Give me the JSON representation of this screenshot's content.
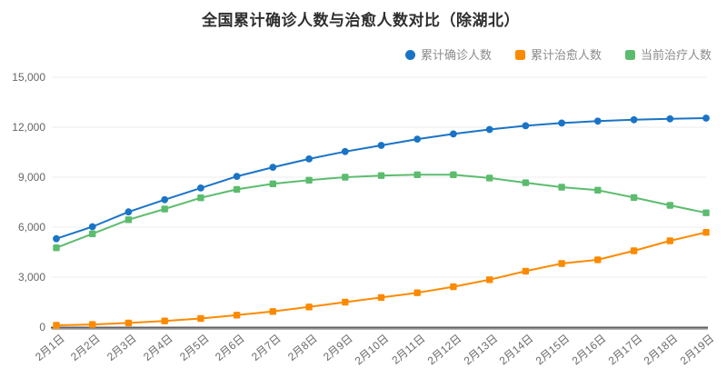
{
  "chart_data": {
    "type": "line",
    "title": "全国累计确诊人数与治愈人数对比（除湖北）",
    "x": [
      "2月1日",
      "2月2日",
      "2月3日",
      "2月4日",
      "2月5日",
      "2月6日",
      "2月7日",
      "2月8日",
      "2月9日",
      "2月10日",
      "2月11日",
      "2月12日",
      "2月13日",
      "2月14日",
      "2月15日",
      "2月16日",
      "2月17日",
      "2月18日",
      "2月19日"
    ],
    "series": [
      {
        "key": "confirmed",
        "name": "累计确诊人数",
        "color": "#1a74c6",
        "marker": "circle",
        "values": [
          5306,
          6028,
          6916,
          7646,
          8353,
          9049,
          9593,
          10098,
          10540,
          10910,
          11287,
          11598,
          11865,
          12086,
          12251,
          12366,
          12447,
          12503,
          12545
        ]
      },
      {
        "key": "cured",
        "name": "累计治愈人数",
        "color": "#fc8a00",
        "marker": "square",
        "values": [
          110,
          160,
          250,
          370,
          520,
          720,
          940,
          1210,
          1500,
          1780,
          2060,
          2420,
          2850,
          3360,
          3820,
          4040,
          4580,
          5180,
          5690
        ]
      },
      {
        "key": "treating",
        "name": "当前治疗人数",
        "color": "#5cbc6e",
        "marker": "square",
        "values": [
          4760,
          5600,
          6450,
          7090,
          7760,
          8270,
          8600,
          8820,
          9000,
          9100,
          9150,
          9150,
          8950,
          8670,
          8400,
          8220,
          7780,
          7310,
          6860
        ]
      }
    ],
    "xlabel": "",
    "ylabel": "",
    "ylim": [
      0,
      15000
    ],
    "yticks": [
      0,
      3000,
      6000,
      9000,
      12000,
      15000
    ],
    "ytick_labels": [
      "0",
      "3,000",
      "6,000",
      "9,000",
      "12,000",
      "15,000"
    ],
    "grid": true,
    "legend_position": "top-right",
    "grid_color": "#ececec",
    "axis_line_color": "#5f5f5f",
    "label_color": "#666666"
  }
}
